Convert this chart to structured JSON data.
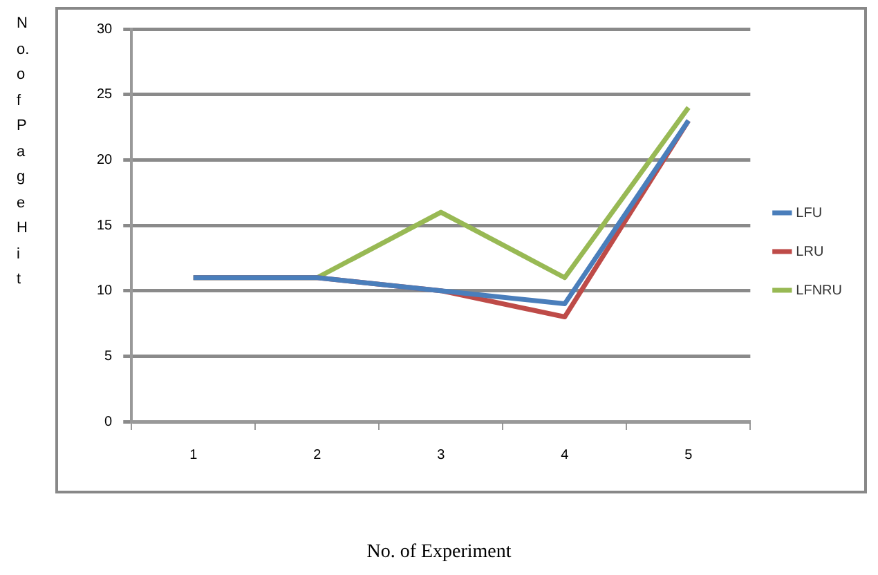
{
  "chart_data": {
    "type": "line",
    "xlabel": "No. of Experiment",
    "ylabel": "No. of PageHit",
    "categories": [
      "1",
      "2",
      "3",
      "4",
      "5"
    ],
    "series": [
      {
        "name": "LFU",
        "color": "#4a7ebb",
        "values": [
          11,
          11,
          10,
          9,
          23
        ]
      },
      {
        "name": "LRU",
        "color": "#be4b48",
        "values": [
          11,
          11,
          10,
          8,
          23
        ]
      },
      {
        "name": "LFNRU",
        "color": "#98b954",
        "values": [
          11,
          11,
          16,
          11,
          24
        ]
      }
    ],
    "ylim": [
      0,
      30
    ],
    "yticks": [
      0,
      5,
      10,
      15,
      20,
      25,
      30
    ],
    "grid": "y",
    "legend": "right",
    "marker": "none",
    "line_style": "solid"
  }
}
